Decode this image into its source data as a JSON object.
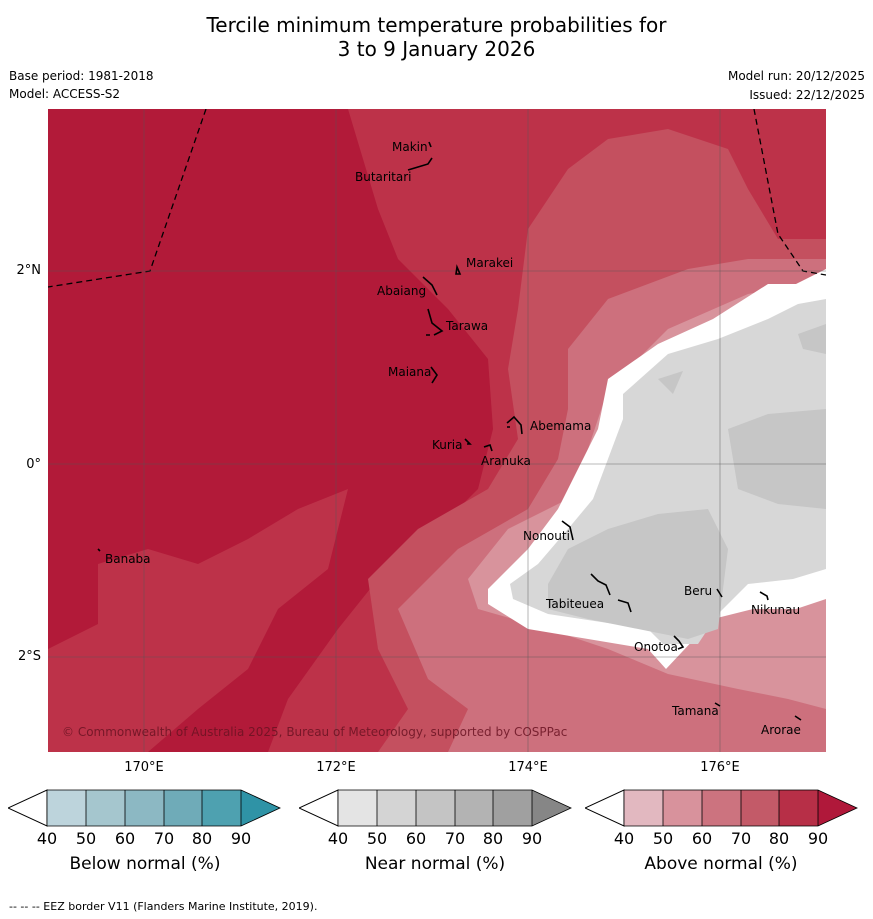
{
  "title_line1": "Tercile minimum temperature probabilities for",
  "title_line2": "3 to 9 January 2026",
  "base_period": "Base period: 1981-2018",
  "model": "Model: ACCESS-S2",
  "model_run": "Model run: 20/12/2025",
  "issued": "Issued: 22/12/2025",
  "copyright": "© Commonwealth of Australia 2025, Bureau of Meteorology, supported by COSPPac",
  "footer": "-- -- -- EEZ border V11 (Flanders Marine Institute, 2019).",
  "lat_labels": [
    "2°N",
    "0°",
    "2°S"
  ],
  "lon_labels": [
    "170°E",
    "172°E",
    "174°E",
    "176°E"
  ],
  "places": [
    {
      "name": "Makin"
    },
    {
      "name": "Butaritari"
    },
    {
      "name": "Marakei"
    },
    {
      "name": "Abaiang"
    },
    {
      "name": "Tarawa"
    },
    {
      "name": "Maiana"
    },
    {
      "name": "Abemama"
    },
    {
      "name": "Kuria"
    },
    {
      "name": "Aranuka"
    },
    {
      "name": "Banaba"
    },
    {
      "name": "Nonouti"
    },
    {
      "name": "Tabiteuea"
    },
    {
      "name": "Beru"
    },
    {
      "name": "Nikunau"
    },
    {
      "name": "Onotoa"
    },
    {
      "name": "Tamana"
    },
    {
      "name": "Arorae"
    }
  ],
  "colorbars": {
    "below": {
      "label": "Below normal (%)",
      "colors": [
        "#bdd4dc",
        "#a5c6ce",
        "#8cb8c3",
        "#6fabb8",
        "#4ea1b0",
        "#2f93a6"
      ]
    },
    "near": {
      "label": "Near normal (%)",
      "colors": [
        "#e4e4e4",
        "#d4d4d4",
        "#c4c4c4",
        "#b3b3b3",
        "#a0a0a0",
        "#868686"
      ]
    },
    "above": {
      "label": "Above normal (%)",
      "colors": [
        "#e2b8c0",
        "#d8929c",
        "#cc737f",
        "#c35a68",
        "#b72f47",
        "#b0183a"
      ]
    },
    "ticks": [
      "40",
      "50",
      "60",
      "70",
      "80",
      "90"
    ]
  },
  "map_colors": {
    "above_90": "#b21a39",
    "above_80": "#bd3249",
    "above_70": "#c4505f",
    "above_60": "#cd707d",
    "above_50": "#d8939c",
    "near_50": "#d7d7d7",
    "near_60": "#c6c6c6"
  }
}
